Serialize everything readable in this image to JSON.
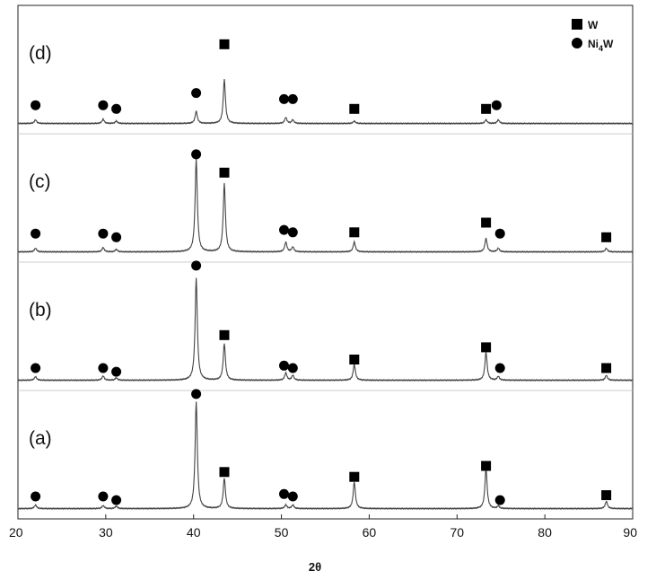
{
  "chart_data": {
    "type": "line",
    "title": "",
    "xlabel": "2θ",
    "ylabel": "",
    "xlim": [
      20,
      90
    ],
    "xticks": [
      20,
      30,
      40,
      50,
      60,
      70,
      80,
      90
    ],
    "grid": false,
    "legend": {
      "placement": "top-right",
      "entries": [
        {
          "marker": "square",
          "label": "W"
        },
        {
          "marker": "circle",
          "label_main": "Ni",
          "label_sub": "4",
          "label_tail": "W"
        }
      ]
    },
    "colors": {
      "line": "#444444",
      "markers": "#000000",
      "axis": "#222222"
    },
    "series": [
      {
        "name": "(d)",
        "baseline_frac": 0.08,
        "peaks": [
          {
            "x": 22.0,
            "h": 0.03
          },
          {
            "x": 29.7,
            "h": 0.035
          },
          {
            "x": 31.2,
            "h": 0.02
          },
          {
            "x": 40.3,
            "h": 0.1
          },
          {
            "x": 43.5,
            "h": 0.36
          },
          {
            "x": 50.5,
            "h": 0.05
          },
          {
            "x": 51.3,
            "h": 0.03
          },
          {
            "x": 58.3,
            "h": 0.02
          },
          {
            "x": 73.3,
            "h": 0.03
          },
          {
            "x": 74.7,
            "h": 0.03
          }
        ],
        "markers": [
          {
            "x": 22.0,
            "shape": "circle",
            "level": 0.15
          },
          {
            "x": 29.7,
            "shape": "circle",
            "level": 0.15
          },
          {
            "x": 31.2,
            "shape": "circle",
            "level": 0.12
          },
          {
            "x": 40.3,
            "shape": "circle",
            "level": 0.25
          },
          {
            "x": 43.5,
            "shape": "square",
            "level": 0.65
          },
          {
            "x": 50.3,
            "shape": "circle",
            "level": 0.2
          },
          {
            "x": 51.3,
            "shape": "circle",
            "level": 0.2
          },
          {
            "x": 58.3,
            "shape": "square",
            "level": 0.12
          },
          {
            "x": 73.3,
            "shape": "square",
            "level": 0.12
          },
          {
            "x": 74.5,
            "shape": "circle",
            "level": 0.15
          }
        ]
      },
      {
        "name": "(c)",
        "baseline_frac": 0.08,
        "peaks": [
          {
            "x": 22.0,
            "h": 0.03
          },
          {
            "x": 29.7,
            "h": 0.035
          },
          {
            "x": 31.2,
            "h": 0.02
          },
          {
            "x": 40.3,
            "h": 0.76
          },
          {
            "x": 43.5,
            "h": 0.56
          },
          {
            "x": 50.5,
            "h": 0.08
          },
          {
            "x": 51.3,
            "h": 0.04
          },
          {
            "x": 58.3,
            "h": 0.08
          },
          {
            "x": 73.3,
            "h": 0.11
          },
          {
            "x": 74.7,
            "h": 0.03
          },
          {
            "x": 87.0,
            "h": 0.03
          }
        ],
        "markers": [
          {
            "x": 22.0,
            "shape": "circle",
            "level": 0.15
          },
          {
            "x": 29.7,
            "shape": "circle",
            "level": 0.15
          },
          {
            "x": 31.2,
            "shape": "circle",
            "level": 0.12
          },
          {
            "x": 40.3,
            "shape": "circle",
            "level": 0.8
          },
          {
            "x": 43.5,
            "shape": "square",
            "level": 0.65
          },
          {
            "x": 50.3,
            "shape": "circle",
            "level": 0.18
          },
          {
            "x": 51.3,
            "shape": "circle",
            "level": 0.16
          },
          {
            "x": 58.3,
            "shape": "square",
            "level": 0.16
          },
          {
            "x": 73.3,
            "shape": "square",
            "level": 0.24
          },
          {
            "x": 74.9,
            "shape": "circle",
            "level": 0.15
          },
          {
            "x": 87.0,
            "shape": "square",
            "level": 0.12
          }
        ]
      },
      {
        "name": "(b)",
        "baseline_frac": 0.08,
        "peaks": [
          {
            "x": 22.0,
            "h": 0.03
          },
          {
            "x": 29.7,
            "h": 0.035
          },
          {
            "x": 31.2,
            "h": 0.02
          },
          {
            "x": 40.3,
            "h": 0.84
          },
          {
            "x": 43.5,
            "h": 0.3
          },
          {
            "x": 50.5,
            "h": 0.06
          },
          {
            "x": 51.3,
            "h": 0.04
          },
          {
            "x": 58.3,
            "h": 0.13
          },
          {
            "x": 73.3,
            "h": 0.23
          },
          {
            "x": 74.7,
            "h": 0.03
          },
          {
            "x": 87.0,
            "h": 0.04
          }
        ],
        "markers": [
          {
            "x": 22.0,
            "shape": "circle",
            "level": 0.1
          },
          {
            "x": 29.7,
            "shape": "circle",
            "level": 0.1
          },
          {
            "x": 31.2,
            "shape": "circle",
            "level": 0.07
          },
          {
            "x": 40.3,
            "shape": "circle",
            "level": 0.94
          },
          {
            "x": 43.5,
            "shape": "square",
            "level": 0.37
          },
          {
            "x": 50.3,
            "shape": "circle",
            "level": 0.12
          },
          {
            "x": 51.3,
            "shape": "circle",
            "level": 0.1
          },
          {
            "x": 58.3,
            "shape": "square",
            "level": 0.17
          },
          {
            "x": 73.3,
            "shape": "square",
            "level": 0.27
          },
          {
            "x": 74.9,
            "shape": "circle",
            "level": 0.1
          },
          {
            "x": 87.0,
            "shape": "square",
            "level": 0.1
          }
        ]
      },
      {
        "name": "(a)",
        "baseline_frac": 0.08,
        "peaks": [
          {
            "x": 22.0,
            "h": 0.03
          },
          {
            "x": 29.7,
            "h": 0.025
          },
          {
            "x": 31.2,
            "h": 0.02
          },
          {
            "x": 40.3,
            "h": 0.88
          },
          {
            "x": 43.5,
            "h": 0.25
          },
          {
            "x": 50.5,
            "h": 0.03
          },
          {
            "x": 51.3,
            "h": 0.03
          },
          {
            "x": 58.3,
            "h": 0.22
          },
          {
            "x": 73.3,
            "h": 0.33
          },
          {
            "x": 74.7,
            "h": 0.02
          },
          {
            "x": 87.0,
            "h": 0.06
          }
        ],
        "markers": [
          {
            "x": 22.0,
            "shape": "circle",
            "level": 0.1
          },
          {
            "x": 29.7,
            "shape": "circle",
            "level": 0.1
          },
          {
            "x": 31.2,
            "shape": "circle",
            "level": 0.07
          },
          {
            "x": 40.3,
            "shape": "circle",
            "level": 0.94
          },
          {
            "x": 43.5,
            "shape": "square",
            "level": 0.3
          },
          {
            "x": 50.3,
            "shape": "circle",
            "level": 0.12
          },
          {
            "x": 51.3,
            "shape": "circle",
            "level": 0.1
          },
          {
            "x": 58.3,
            "shape": "square",
            "level": 0.26
          },
          {
            "x": 73.3,
            "shape": "square",
            "level": 0.35
          },
          {
            "x": 74.9,
            "shape": "circle",
            "level": 0.07
          },
          {
            "x": 87.0,
            "shape": "square",
            "level": 0.11
          }
        ]
      }
    ]
  }
}
